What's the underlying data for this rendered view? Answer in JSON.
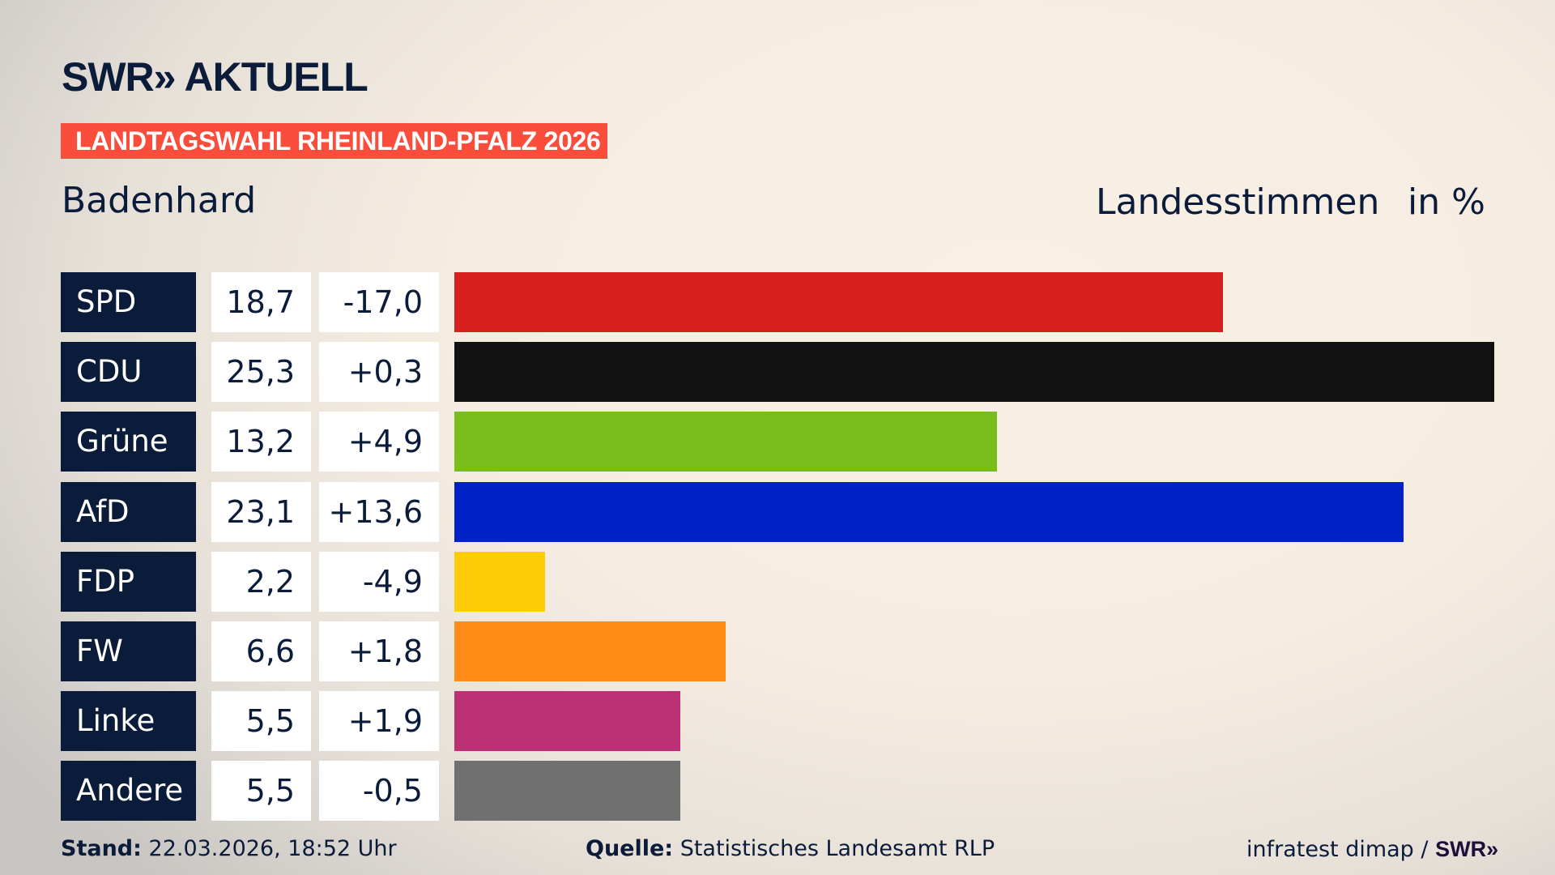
{
  "header": {
    "logo": "SWR» AKTUELL",
    "badge": "LANDTAGSWAHL RHEINLAND-PFALZ 2026",
    "region": "Badenhard",
    "measure": "Landesstimmen",
    "unit": "in %"
  },
  "chart_data": {
    "type": "bar",
    "orientation": "horizontal",
    "categories": [
      "SPD",
      "CDU",
      "Grüne",
      "AfD",
      "FDP",
      "FW",
      "Linke",
      "Andere"
    ],
    "values": [
      "18,7",
      "25,3",
      "13,2",
      "23,1",
      "2,2",
      "6,6",
      "5,5",
      "5,5"
    ],
    "numeric_values": [
      18.7,
      25.3,
      13.2,
      23.1,
      2.2,
      6.6,
      5.5,
      5.5
    ],
    "changes": [
      "-17,0",
      "+0,3",
      "+4,9",
      "+13,6",
      "-4,9",
      "+1,8",
      "+1,9",
      "-0,5"
    ],
    "colors": [
      "#d71f1f",
      "#121212",
      "#79bc1b",
      "#0022c8",
      "#ffcc0a",
      "#ff8c17",
      "#bc3075",
      "#707070"
    ],
    "xlim": [
      0,
      25.3
    ],
    "grid": false,
    "legend": "none"
  },
  "footer": {
    "stand_label": "Stand:",
    "stand_value": "22.03.2026, 18:52 Uhr",
    "source_label": "Quelle:",
    "source_value": "Statistisches Landesamt RLP",
    "credit": "infratest dimap / ",
    "credit_logo": "SWR»"
  }
}
